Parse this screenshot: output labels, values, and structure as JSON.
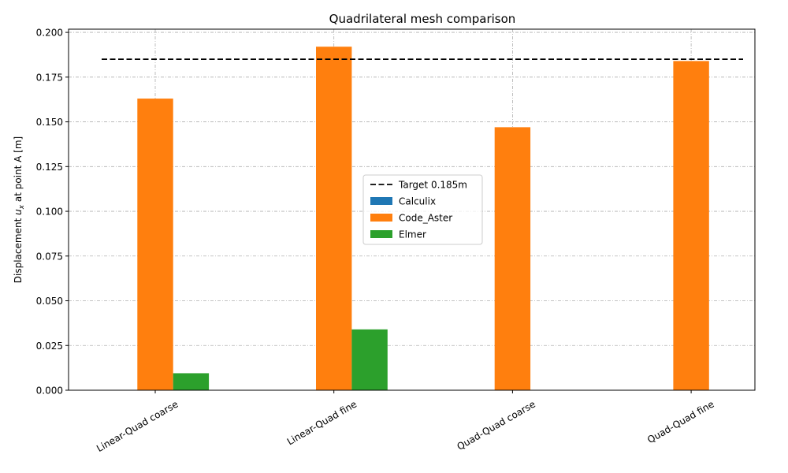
{
  "chart_data": {
    "type": "bar",
    "title": "Quadrilateral mesh comparison",
    "xlabel": "",
    "ylabel_prefix": "Displacement ",
    "ylabel_var": "u",
    "ylabel_sub": "x",
    "ylabel_suffix": " at point A [m]",
    "categories": [
      "Linear-Quad coarse",
      "Linear-Quad fine",
      "Quad-Quad coarse",
      "Quad-Quad fine"
    ],
    "series": [
      {
        "name": "Calculix",
        "color": "#1f77b4",
        "values": [
          0,
          0,
          0,
          0
        ]
      },
      {
        "name": "Code_Aster",
        "color": "#ff7f0e",
        "values": [
          0.163,
          0.192,
          0.147,
          0.184
        ]
      },
      {
        "name": "Elmer",
        "color": "#2ca02c",
        "values": [
          0.0095,
          0.034,
          0,
          0
        ]
      }
    ],
    "target": {
      "label": "Target 0.185m",
      "value": 0.185,
      "style": "dashed",
      "color": "#000000"
    },
    "ylim": [
      0,
      0.2018
    ],
    "yticks": [
      "0.000",
      "0.025",
      "0.050",
      "0.075",
      "0.100",
      "0.125",
      "0.150",
      "0.175",
      "0.200"
    ],
    "grid": true,
    "legend_position": "center-right",
    "xtick_rotation": 30
  }
}
